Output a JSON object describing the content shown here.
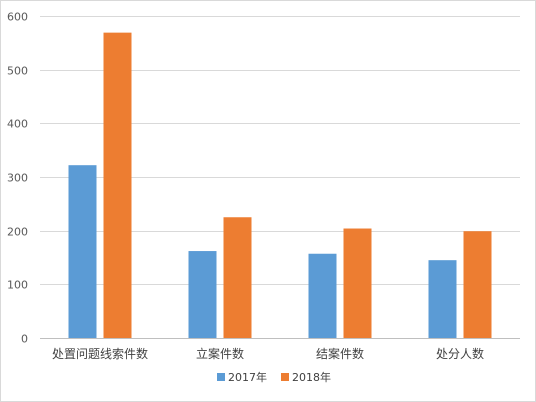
{
  "chart_data": {
    "type": "bar",
    "categories": [
      "处置问题线索件数",
      "立案件数",
      "结案件数",
      "处分人数"
    ],
    "series": [
      {
        "name": "2017年",
        "values": [
          322,
          162,
          157,
          145
        ],
        "color": "#5b9bd5"
      },
      {
        "name": "2018年",
        "values": [
          569,
          225,
          204,
          199
        ],
        "color": "#ed7d31"
      }
    ],
    "ylim": [
      0,
      600
    ],
    "yticks": [
      0,
      100,
      200,
      300,
      400,
      500,
      600
    ],
    "grid": true,
    "legend": "bottom",
    "title": "",
    "xlabel": "",
    "ylabel": ""
  }
}
